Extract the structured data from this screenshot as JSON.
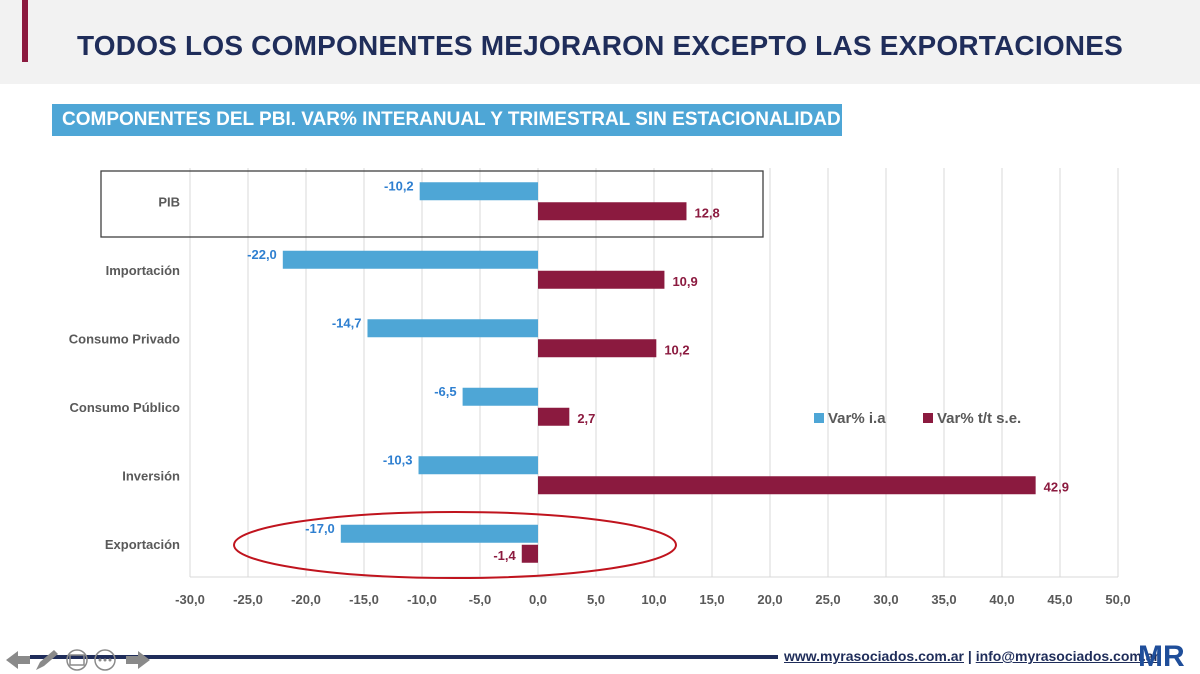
{
  "header": {
    "title": "TODOS LOS COMPONENTES MEJORARON EXCEPTO LAS EXPORTACIONES",
    "subtitle": "COMPONENTES DEL PBI. VAR% INTERANUAL Y TRIMESTRAL SIN ESTACIONALIDAD"
  },
  "footer": {
    "website": "www.myrasociados.com.ar",
    "separator": "|",
    "email": "info@myrasociados.com.ar",
    "logo_text": "MR"
  },
  "colors": {
    "ia": "#4ea6d6",
    "tt": "#8b1a3f",
    "ia_label": "#2e7fd0",
    "tt_label": "#8b1a3f",
    "highlight_circle": "#c0141e",
    "header_bg": "#f2f2f2",
    "title": "#1f2d5a"
  },
  "chart_data": {
    "type": "bar",
    "orientation": "horizontal",
    "categories": [
      "PIB",
      "Importación",
      "Consumo Privado",
      "Consumo Público",
      "Inversión",
      "Exportación"
    ],
    "series": [
      {
        "name": "Var% i.a",
        "values": [
          -10.2,
          -22.0,
          -14.7,
          -6.5,
          -10.3,
          -17.0
        ],
        "labels": [
          "-10,2",
          "-22,0",
          "-14,7",
          "-6,5",
          "-10,3",
          "-17,0"
        ]
      },
      {
        "name": "Var% t/t s.e.",
        "values": [
          12.8,
          10.9,
          10.2,
          2.7,
          42.9,
          -1.4
        ],
        "labels": [
          "12,8",
          "10,9",
          "10,2",
          "2,7",
          "42,9",
          "-1,4"
        ]
      }
    ],
    "xlim": [
      -30,
      50
    ],
    "x_ticks": [
      -30,
      -25,
      -20,
      -15,
      -10,
      -5,
      0,
      5,
      10,
      15,
      20,
      25,
      30,
      35,
      40,
      45,
      50
    ],
    "x_tick_labels": [
      "-30,0",
      "-25,0",
      "-20,0",
      "-15,0",
      "-10,0",
      "-5,0",
      "0,0",
      "5,0",
      "10,0",
      "15,0",
      "20,0",
      "25,0",
      "30,0",
      "35,0",
      "40,0",
      "45,0",
      "50,0"
    ],
    "grid": "vertical",
    "legend": "right",
    "highlight_box": "PIB",
    "highlight_circle": "Exportación"
  }
}
